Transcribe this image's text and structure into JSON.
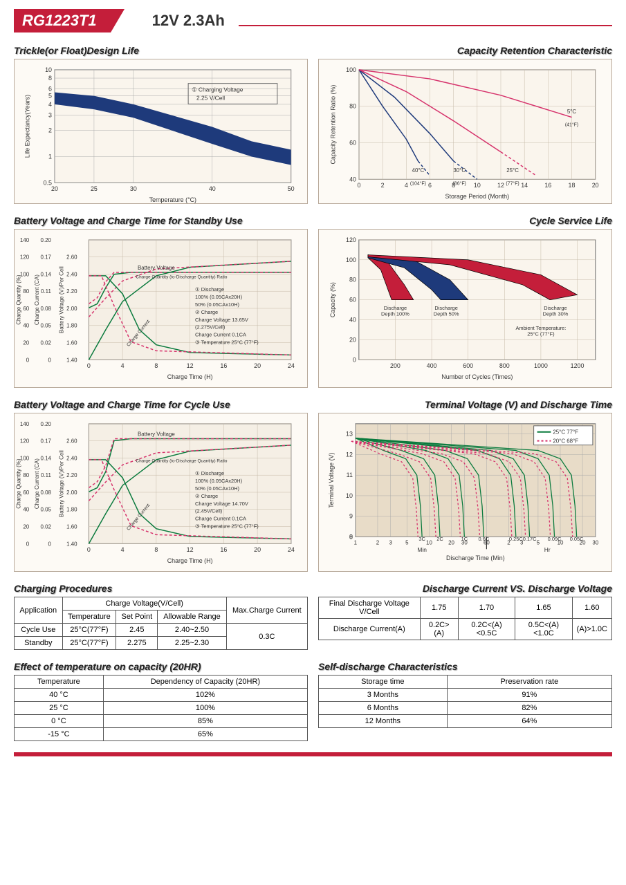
{
  "header": {
    "model": "RG1223T1",
    "spec": "12V  2.3Ah"
  },
  "chart1": {
    "title": "Trickle(or Float)Design Life",
    "type": "area-band",
    "xlabel": "Temperature (°C)",
    "ylabel": "Life Expectancy(Years)",
    "xticks": [
      "20",
      "25",
      "30",
      "40",
      "50"
    ],
    "yticks": [
      "0.5",
      "1",
      "2",
      "3",
      "4",
      "5",
      "6",
      "8",
      "10"
    ],
    "band_color": "#1e3a7b",
    "grid_color": "#999",
    "bg": "#faf5ed",
    "annotation": "① Charging Voltage\n2.25 V/Cell",
    "upper": [
      [
        20,
        5.5
      ],
      [
        25,
        5
      ],
      [
        30,
        4
      ],
      [
        40,
        2.2
      ],
      [
        45,
        1.5
      ],
      [
        50,
        1.2
      ]
    ],
    "lower": [
      [
        20,
        4
      ],
      [
        25,
        3.5
      ],
      [
        30,
        2.8
      ],
      [
        40,
        1.4
      ],
      [
        45,
        1
      ],
      [
        50,
        0.8
      ]
    ]
  },
  "chart2": {
    "title": "Capacity Retention Characteristic",
    "type": "line",
    "xlabel": "Storage Period (Month)",
    "ylabel": "Capacity Retention Ratio (%)",
    "xticks": [
      "0",
      "2",
      "4",
      "6",
      "8",
      "10",
      "12",
      "14",
      "16",
      "18",
      "20"
    ],
    "yticks": [
      "40",
      "60",
      "80",
      "100"
    ],
    "bg": "#faf5ed",
    "grid_color": "#b5a99a",
    "series": [
      {
        "label": "40°C (104°F)",
        "color": "#1e3a7b",
        "dash": "",
        "pts": [
          [
            0,
            100
          ],
          [
            2,
            80
          ],
          [
            4,
            62
          ],
          [
            5,
            50
          ]
        ],
        "dashed_ext": [
          [
            5,
            50
          ],
          [
            6,
            42
          ]
        ]
      },
      {
        "label": "30°C (86°F)",
        "color": "#1e3a7b",
        "dash": "",
        "pts": [
          [
            0,
            100
          ],
          [
            3,
            85
          ],
          [
            6,
            65
          ],
          [
            8,
            50
          ]
        ],
        "dashed_ext": [
          [
            8,
            50
          ],
          [
            10,
            40
          ]
        ]
      },
      {
        "label": "25°C (77°F)",
        "color": "#d6336c",
        "dash": "",
        "pts": [
          [
            0,
            100
          ],
          [
            4,
            88
          ],
          [
            8,
            72
          ],
          [
            12,
            55
          ]
        ],
        "dashed_ext": [
          [
            12,
            55
          ],
          [
            15,
            42
          ]
        ]
      },
      {
        "label": "5°C (41°F)",
        "color": "#d6336c",
        "dash": "",
        "pts": [
          [
            0,
            100
          ],
          [
            6,
            95
          ],
          [
            12,
            86
          ],
          [
            18,
            74
          ]
        ]
      }
    ]
  },
  "chart3": {
    "title": "Battery Voltage and Charge Time for Standby Use",
    "type": "multi-axis-line",
    "xlabel": "Charge Time (H)",
    "y1": "Charge Quantity (%)",
    "y2": "Charge Current (CA)",
    "y3": "Battery Voltage (V)/Per Cell",
    "xticks": [
      "0",
      "4",
      "8",
      "12",
      "16",
      "20",
      "24"
    ],
    "y1ticks": [
      "0",
      "20",
      "40",
      "60",
      "80",
      "100",
      "120",
      "140"
    ],
    "y2ticks": [
      "0",
      "0.02",
      "0.05",
      "0.08",
      "0.11",
      "0.14",
      "0.17",
      "0.20"
    ],
    "y3ticks": [
      "1.40",
      "1.60",
      "1.80",
      "2.00",
      "2.20",
      "2.40",
      "2.60"
    ],
    "bg": "#f5efe5",
    "grid": "#b5a99a",
    "note": "① Discharge\n   100% (0.05CAx20H)\n   50% (0.05CAx10H)\n② Charge\n   Charge Voltage 13.65V\n   (2.275V/Cell)\n   Charge Current 0.1CA\n③ Temperature 25°C (77°F)",
    "green": "#0a7a3d",
    "pink": "#d6336c",
    "solid1": [
      [
        0,
        1.92
      ],
      [
        1,
        1.95
      ],
      [
        2,
        2.1
      ],
      [
        3,
        2.22
      ],
      [
        5,
        2.26
      ],
      [
        10,
        2.27
      ],
      [
        24,
        2.27
      ]
    ],
    "dash1": [
      [
        0,
        1.95
      ],
      [
        1,
        2.0
      ],
      [
        2,
        2.15
      ],
      [
        3,
        2.25
      ],
      [
        5,
        2.27
      ],
      [
        24,
        2.27
      ]
    ],
    "solid2": [
      [
        0,
        0
      ],
      [
        2,
        35
      ],
      [
        4,
        65
      ],
      [
        8,
        95
      ],
      [
        12,
        105
      ],
      [
        24,
        110
      ]
    ],
    "dash2": [
      [
        0,
        50
      ],
      [
        2,
        70
      ],
      [
        4,
        90
      ],
      [
        8,
        105
      ],
      [
        24,
        112
      ]
    ],
    "curr_solid": [
      [
        0,
        0.14
      ],
      [
        2,
        0.14
      ],
      [
        4,
        0.12
      ],
      [
        6,
        0.06
      ],
      [
        8,
        0.03
      ],
      [
        12,
        0.015
      ],
      [
        24,
        0.01
      ]
    ],
    "curr_dash": [
      [
        0,
        0.14
      ],
      [
        2,
        0.14
      ],
      [
        3,
        0.1
      ],
      [
        5,
        0.04
      ],
      [
        8,
        0.02
      ],
      [
        24,
        0.01
      ]
    ]
  },
  "chart4": {
    "title": "Cycle Service Life",
    "type": "area",
    "xlabel": "Number of Cycles (Times)",
    "ylabel": "Capacity (%)",
    "xticks": [
      "200",
      "400",
      "600",
      "800",
      "1000",
      "1200"
    ],
    "yticks": [
      "0",
      "20",
      "40",
      "60",
      "80",
      "100",
      "120"
    ],
    "bg": "#faf5ed",
    "grid": "#b5a99a",
    "note": "Ambient Temperature:\n25°C (77°F)",
    "bands": [
      {
        "label": "Discharge Depth 100%",
        "color": "#c41e3a",
        "upper": [
          [
            50,
            105
          ],
          [
            150,
            100
          ],
          [
            250,
            75
          ],
          [
            300,
            60
          ]
        ],
        "lower": [
          [
            50,
            102
          ],
          [
            120,
            90
          ],
          [
            180,
            60
          ]
        ]
      },
      {
        "label": "Discharge Depth 50%",
        "color": "#1e3a7b",
        "upper": [
          [
            50,
            105
          ],
          [
            300,
            100
          ],
          [
            500,
            80
          ],
          [
            600,
            60
          ]
        ],
        "lower": [
          [
            50,
            102
          ],
          [
            250,
            92
          ],
          [
            400,
            70
          ],
          [
            450,
            60
          ]
        ]
      },
      {
        "label": "Discharge Depth 30%",
        "color": "#c41e3a",
        "upper": [
          [
            50,
            105
          ],
          [
            600,
            100
          ],
          [
            1000,
            85
          ],
          [
            1200,
            65
          ]
        ],
        "lower": [
          [
            50,
            103
          ],
          [
            500,
            95
          ],
          [
            900,
            75
          ],
          [
            1050,
            60
          ]
        ]
      }
    ]
  },
  "chart5": {
    "title": "Battery Voltage and Charge Time for Cycle Use",
    "type": "multi-axis-line",
    "xlabel": "Charge Time (H)",
    "y1": "Charge Quantity (%)",
    "y2": "Charge Current (CA)",
    "y3": "Battery Voltage (V)/Per Cell",
    "xticks": [
      "0",
      "4",
      "8",
      "12",
      "16",
      "20",
      "24"
    ],
    "y1ticks": [
      "0",
      "20",
      "40",
      "60",
      "80",
      "100",
      "120",
      "140"
    ],
    "y2ticks": [
      "0",
      "0.02",
      "0.05",
      "0.08",
      "0.11",
      "0.14",
      "0.17",
      "0.20"
    ],
    "y3ticks": [
      "1.40",
      "1.60",
      "1.80",
      "2.00",
      "2.20",
      "2.40",
      "2.60"
    ],
    "bg": "#f5efe5",
    "grid": "#b5a99a",
    "note": "① Discharge\n   100% (0.05CAx20H)\n   50% (0.05CAx10H)\n② Charge\n   Charge Voltage 14.70V\n   (2.45V/Cell)\n   Charge Current 0.1CA\n③ Temperature 25°C (77°F)",
    "green": "#0a7a3d",
    "pink": "#d6336c"
  },
  "chart6": {
    "title": "Terminal Voltage (V) and Discharge Time",
    "type": "line",
    "xlabel": "Discharge Time (Min)",
    "ylabel": "Terminal Voltage (V)",
    "yticks": [
      "0",
      "8",
      "9",
      "10",
      "11",
      "12",
      "13"
    ],
    "xticks_min": [
      "1",
      "2",
      "3",
      "5",
      "10",
      "20",
      "30",
      "60"
    ],
    "xticks_hr": [
      "2",
      "3",
      "5",
      "10",
      "20",
      "30"
    ],
    "bg": "#e8dcc8",
    "grid": "#aaa",
    "legend": [
      {
        "label": "25°C 77°F",
        "color": "#0a7a3d",
        "dash": ""
      },
      {
        "label": "20°C 68°F",
        "color": "#d6336c",
        "dash": "4,3"
      }
    ],
    "curves": [
      "3C",
      "2C",
      "1C",
      "0.6C",
      "0.25C",
      "0.17C",
      "0.09C",
      "0.05C"
    ]
  },
  "tables": {
    "charging_title": "Charging Procedures",
    "charging": {
      "headers1": [
        "Application",
        "Charge Voltage(V/Cell)",
        "Max.Charge Current"
      ],
      "headers2": [
        "Temperature",
        "Set Point",
        "Allowable Range"
      ],
      "rows": [
        [
          "Cycle Use",
          "25°C(77°F)",
          "2.45",
          "2.40~2.50",
          "0.3C"
        ],
        [
          "Standby",
          "25°C(77°F)",
          "2.275",
          "2.25~2.30",
          ""
        ]
      ]
    },
    "discharge_title": "Discharge Current VS. Discharge Voltage",
    "discharge": {
      "row1": [
        "Final Discharge Voltage V/Cell",
        "1.75",
        "1.70",
        "1.65",
        "1.60"
      ],
      "row2": [
        "Discharge Current(A)",
        "0.2C>(A)",
        "0.2C<(A)<0.5C",
        "0.5C<(A)<1.0C",
        "(A)>1.0C"
      ]
    },
    "temp_title": "Effect of temperature on capacity (20HR)",
    "temp": {
      "headers": [
        "Temperature",
        "Dependency of Capacity (20HR)"
      ],
      "rows": [
        [
          "40 °C",
          "102%"
        ],
        [
          "25 °C",
          "100%"
        ],
        [
          "0 °C",
          "85%"
        ],
        [
          "-15 °C",
          "65%"
        ]
      ]
    },
    "self_title": "Self-discharge Characteristics",
    "self": {
      "headers": [
        "Storage time",
        "Preservation rate"
      ],
      "rows": [
        [
          "3 Months",
          "91%"
        ],
        [
          "6 Months",
          "82%"
        ],
        [
          "12 Months",
          "64%"
        ]
      ]
    }
  }
}
